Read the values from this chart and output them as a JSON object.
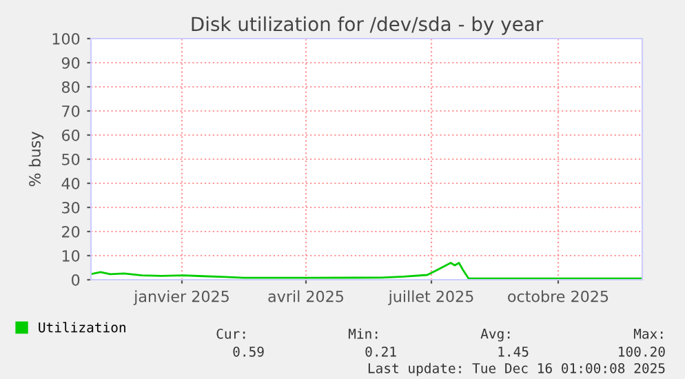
{
  "chart_data": {
    "type": "line",
    "title": "Disk utilization for /dev/sda - by year",
    "ylabel": "% busy",
    "x": [
      "2024-11-12",
      "2024-11-18",
      "2024-11-25",
      "2024-12-05",
      "2024-12-18",
      "2025-01-01",
      "2025-01-17",
      "2025-01-31",
      "2025-02-16",
      "2025-03-02",
      "2025-04-21",
      "2025-06-10",
      "2025-06-26",
      "2025-07-13",
      "2025-07-20",
      "2025-07-25",
      "2025-07-30",
      "2025-08-02",
      "2025-08-05",
      "2025-08-08",
      "2025-08-12",
      "2025-12-16"
    ],
    "series": [
      {
        "name": "Utilization",
        "color": "#00cc00",
        "values": [
          2.5,
          3.2,
          2.3,
          2.6,
          1.8,
          1.6,
          1.8,
          1.5,
          1.2,
          0.8,
          0.8,
          0.9,
          1.3,
          2.0,
          4.0,
          5.5,
          7.0,
          6.0,
          7.0,
          4.0,
          0.5,
          0.5
        ]
      }
    ],
    "xlim": [
      "2024-11-11",
      "2025-12-16"
    ],
    "xticks": [
      {
        "value": "2025-01-16",
        "label": "janvier 2025"
      },
      {
        "value": "2025-04-16",
        "label": "avril 2025"
      },
      {
        "value": "2025-07-16",
        "label": "juillet 2025"
      },
      {
        "value": "2025-10-16",
        "label": "octobre 2025"
      }
    ],
    "ylim": [
      0,
      100
    ],
    "yticks": [
      0,
      10,
      20,
      30,
      40,
      50,
      60,
      70,
      80,
      90,
      100
    ],
    "grid": true,
    "legend": "bottom left",
    "annotations": [
      "Cur:",
      "Min:",
      "Avg:",
      "Max:",
      "0.59",
      "0.21",
      "1.45",
      "100.20",
      "Last update: Tue Dec 16 01:00:08 2025"
    ]
  }
}
